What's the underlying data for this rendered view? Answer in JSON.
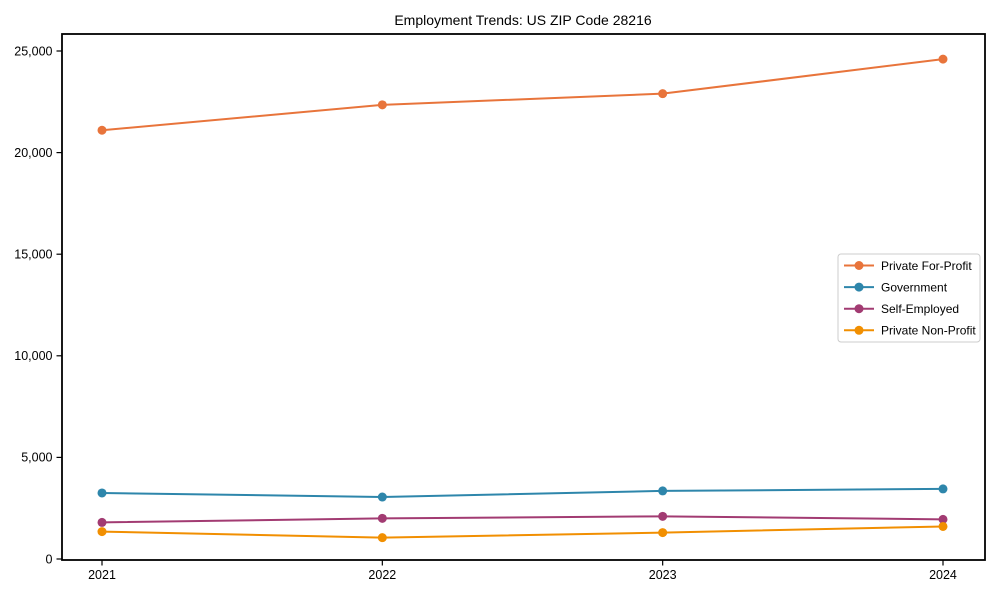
{
  "chart_data": {
    "type": "line",
    "title": "Employment Trends: US ZIP Code 28216",
    "x": [
      "2021",
      "2022",
      "2023",
      "2024"
    ],
    "series": [
      {
        "name": "Private For-Profit",
        "color": "#E8743B",
        "values": [
          21100,
          22350,
          22900,
          24600
        ]
      },
      {
        "name": "Government",
        "color": "#2E86AB",
        "values": [
          3250,
          3050,
          3350,
          3450
        ]
      },
      {
        "name": "Self-Employed",
        "color": "#A23B72",
        "values": [
          1800,
          2000,
          2100,
          1950
        ]
      },
      {
        "name": "Private Non-Profit",
        "color": "#F18F01",
        "values": [
          1350,
          1050,
          1300,
          1600
        ]
      }
    ],
    "ylim": [
      0,
      25000
    ],
    "yticks": [
      0,
      5000,
      10000,
      15000,
      20000,
      25000
    ],
    "ytick_labels": [
      "0",
      "5,000",
      "10,000",
      "15,000",
      "20,000",
      "25,000"
    ],
    "xlabel": "",
    "ylabel": "",
    "grid": false,
    "marker": "circle",
    "legend_position": "center right",
    "axis_color": "#000000",
    "background_color": "#ffffff"
  }
}
